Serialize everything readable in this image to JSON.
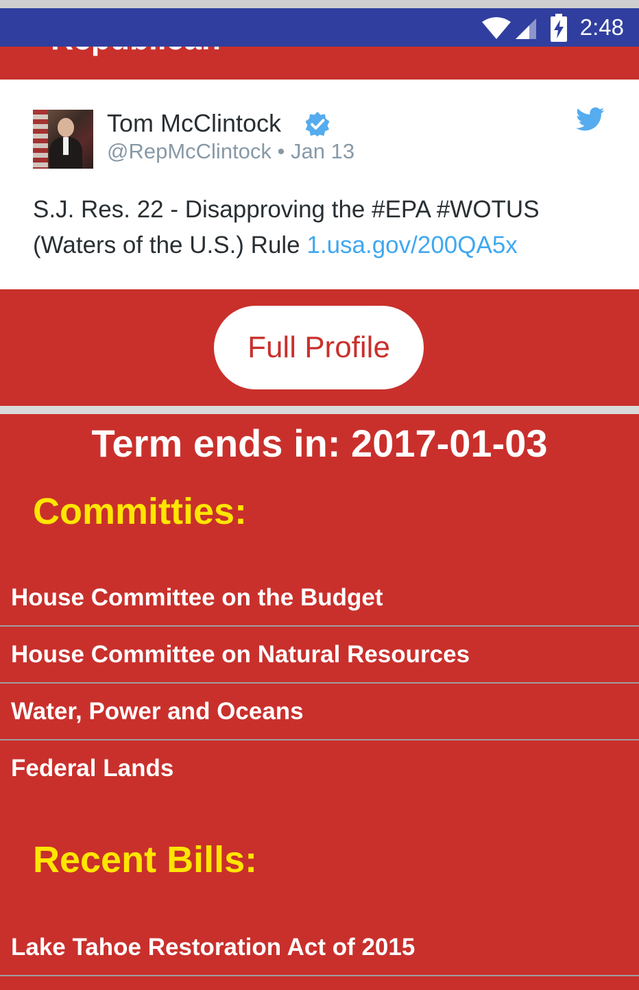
{
  "status_bar": {
    "time": "2:48",
    "icons": [
      "wifi-icon",
      "cell-signal-icon",
      "battery-charging-icon"
    ]
  },
  "party_banner": {
    "party": "Republican"
  },
  "tweet": {
    "author_name": "Tom McClintock",
    "handle": "@RepMcClintock",
    "separator": "•",
    "date": "Jan 13",
    "text_before_link": "S.J. Res. 22 - Disapproving the #EPA #WOTUS (Waters of the U.S.) Rule ",
    "link": "1.usa.gov/200QA5x",
    "icons": [
      "verified-badge-icon",
      "twitter-bird-icon",
      "avatar-photo"
    ]
  },
  "profile": {
    "button_label": "Full Profile"
  },
  "term": {
    "label": "Term ends in: 2017-01-03"
  },
  "committees": {
    "heading": "Committies:",
    "items": [
      "House Committee on the Budget",
      "House Committee on Natural Resources",
      "Water, Power and Oceans",
      "Federal Lands"
    ]
  },
  "bills": {
    "heading": "Recent Bills:",
    "items": [
      "Lake Tahoe Restoration Act of 2015"
    ]
  },
  "colors": {
    "party_red": "#C9302C",
    "status_bar_blue": "#303F9F",
    "heading_yellow": "#FFE600",
    "tweet_link_blue": "#3FA8F0",
    "twitter_blue": "#55ACEE"
  }
}
